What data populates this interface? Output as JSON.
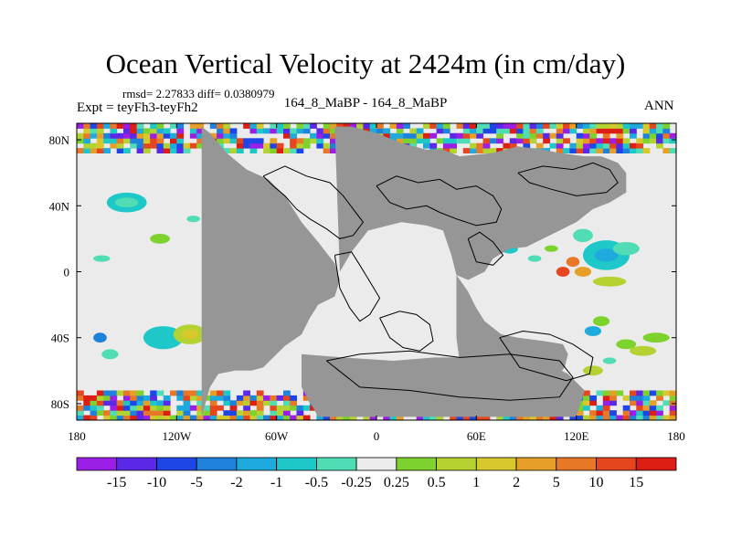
{
  "header": {
    "title": "Ocean Vertical Velocity at 2424m (in cm/day)",
    "stats": "rmsd= 2.27833 diff= 0.0380979",
    "experiment": "Expt = teyFh3-teyFh2",
    "case": "164_8_MaBP - 164_8_MaBP",
    "season": "ANN"
  },
  "colors": {
    "land": "#969696",
    "neutral": "#ebebeb",
    "coast": "#000000"
  },
  "chart_data": {
    "type": "heatmap",
    "title": "Ocean Vertical Velocity at 2424m (in cm/day)",
    "xlim": [
      -180,
      180
    ],
    "ylim": [
      -90,
      90
    ],
    "x_ticks": [
      {
        "value": -180,
        "label": "180"
      },
      {
        "value": -120,
        "label": "120W"
      },
      {
        "value": -60,
        "label": "60W"
      },
      {
        "value": 0,
        "label": "0"
      },
      {
        "value": 60,
        "label": "60E"
      },
      {
        "value": 120,
        "label": "120E"
      },
      {
        "value": 180,
        "label": "180"
      }
    ],
    "y_ticks": [
      {
        "value": 80,
        "label": "80N"
      },
      {
        "value": 40,
        "label": "40N"
      },
      {
        "value": 0,
        "label": "0"
      },
      {
        "value": -40,
        "label": "40S"
      },
      {
        "value": -80,
        "label": "80S"
      }
    ],
    "colorbar": {
      "labels": [
        "-15",
        "-10",
        "-5",
        "-2",
        "-1",
        "-0.5",
        "-0.25",
        "0.25",
        "0.5",
        "1",
        "2",
        "5",
        "10",
        "15"
      ],
      "colors": [
        "#9b1ee6",
        "#5a28e6",
        "#1e46e6",
        "#1e82dc",
        "#1eaadc",
        "#1ec8c8",
        "#50dcb4",
        "#ebebeb",
        "#7dd22d",
        "#b4d232",
        "#d7c82d",
        "#e6a028",
        "#e67828",
        "#e6461e",
        "#dc1e14"
      ]
    },
    "land": [
      {
        "lon": [
          -105,
          -100,
          -90,
          -78,
          -65,
          -55,
          -45,
          -35,
          -25,
          -22,
          -25,
          -35,
          -40,
          -45,
          -55,
          -62,
          -68,
          -75,
          -85,
          -95,
          -100,
          -105
        ],
        "lat": [
          88,
          84,
          72,
          62,
          56,
          46,
          30,
          18,
          5,
          -5,
          -15,
          -20,
          -28,
          -38,
          -45,
          -52,
          -58,
          -60,
          -60,
          -62,
          -70,
          -88
        ]
      },
      {
        "lon": [
          -25,
          -15,
          0,
          15,
          30,
          40,
          50,
          70,
          85,
          100,
          110,
          125,
          135,
          145,
          150,
          150,
          140,
          130,
          120,
          110,
          100,
          90,
          80,
          70,
          65,
          55,
          48,
          45,
          40,
          30,
          15,
          -5,
          -15,
          -22,
          -25
        ],
        "lat": [
          88,
          88,
          84,
          78,
          74,
          74,
          70,
          72,
          76,
          74,
          72,
          70,
          70,
          66,
          60,
          48,
          42,
          38,
          30,
          25,
          20,
          15,
          14,
          8,
          0,
          -5,
          -2,
          10,
          25,
          28,
          30,
          25,
          12,
          0,
          88
        ]
      },
      {
        "lon": [
          48,
          55,
          60,
          65,
          75,
          85,
          100,
          112,
          115,
          113,
          108,
          100,
          90,
          80,
          70,
          60,
          52,
          48
        ],
        "lat": [
          -2,
          -12,
          -22,
          -30,
          -38,
          -40,
          -42,
          -44,
          -50,
          -58,
          -64,
          -72,
          -78,
          -80,
          -82,
          -80,
          -70,
          -40
        ]
      },
      {
        "lon": [
          -45,
          -20,
          10,
          35,
          60,
          80,
          100,
          115,
          125,
          120,
          95,
          60,
          30,
          10,
          -15,
          -35,
          -45
        ],
        "lat": [
          -50,
          -52,
          -54,
          -52,
          -52,
          -50,
          -54,
          -62,
          -72,
          -88,
          -88,
          -88,
          -88,
          -88,
          -88,
          -88,
          -70
        ]
      }
    ],
    "coastlines": [
      {
        "lon": [
          -68,
          -55,
          -42,
          -28,
          -20,
          -14,
          -8,
          -14,
          -22,
          -30,
          -40,
          -48,
          -55,
          -62,
          -68
        ],
        "lat": [
          58,
          64,
          58,
          54,
          46,
          38,
          30,
          22,
          20,
          26,
          32,
          38,
          46,
          52,
          58
        ]
      },
      {
        "lon": [
          0,
          12,
          25,
          38,
          48,
          60,
          70,
          75,
          72,
          60,
          48,
          38,
          30,
          18,
          8,
          0
        ],
        "lat": [
          52,
          58,
          54,
          56,
          50,
          52,
          46,
          38,
          30,
          28,
          32,
          36,
          40,
          38,
          42,
          52
        ]
      },
      {
        "lon": [
          -25,
          -15,
          -10,
          -4,
          2,
          -4,
          -10,
          -16,
          -22,
          -25
        ],
        "lat": [
          10,
          12,
          4,
          -6,
          -16,
          -26,
          -30,
          -22,
          -10,
          10
        ]
      },
      {
        "lon": [
          2,
          14,
          24,
          32,
          34,
          26,
          16,
          8,
          2
        ],
        "lat": [
          -28,
          -24,
          -26,
          -32,
          -42,
          -48,
          -46,
          -40,
          -28
        ]
      },
      {
        "lon": [
          74,
          88,
          104,
          118,
          130,
          128,
          114,
          100,
          86,
          74
        ],
        "lat": [
          -40,
          -36,
          -38,
          -44,
          -52,
          -62,
          -66,
          -62,
          -58,
          -40
        ]
      },
      {
        "lon": [
          -30,
          -10,
          20,
          50,
          80,
          110,
          118,
          110,
          80,
          50,
          20,
          -10,
          -30
        ],
        "lat": [
          -54,
          -50,
          -48,
          -52,
          -50,
          -54,
          -64,
          -76,
          -78,
          -76,
          -72,
          -70,
          -54
        ]
      },
      {
        "lon": [
          85,
          100,
          118,
          130,
          140,
          145,
          138,
          120,
          105,
          92,
          85
        ],
        "lat": [
          60,
          64,
          62,
          66,
          62,
          54,
          48,
          46,
          50,
          54,
          60
        ]
      },
      {
        "lon": [
          55,
          62,
          70,
          76,
          70,
          60,
          55
        ],
        "lat": [
          20,
          24,
          18,
          10,
          4,
          6,
          20
        ]
      }
    ],
    "anomalies": [
      {
        "lon": -150,
        "lat": 42,
        "rx": 12,
        "ry": 6,
        "level": 5
      },
      {
        "lon": -150,
        "lat": 42,
        "rx": 7,
        "ry": 3,
        "level": 6
      },
      {
        "lon": -130,
        "lat": 20,
        "rx": 6,
        "ry": 3,
        "level": 8
      },
      {
        "lon": -165,
        "lat": 8,
        "rx": 5,
        "ry": 2,
        "level": 6
      },
      {
        "lon": -110,
        "lat": 32,
        "rx": 4,
        "ry": 2,
        "level": 6
      },
      {
        "lon": -128,
        "lat": -40,
        "rx": 12,
        "ry": 7,
        "level": 5
      },
      {
        "lon": -112,
        "lat": -38,
        "rx": 10,
        "ry": 6,
        "level": 9
      },
      {
        "lon": -112,
        "lat": -38,
        "rx": 5,
        "ry": 3,
        "level": 10
      },
      {
        "lon": -160,
        "lat": -50,
        "rx": 5,
        "ry": 3,
        "level": 6
      },
      {
        "lon": -166,
        "lat": -40,
        "rx": 4,
        "ry": 3,
        "level": 3
      },
      {
        "lon": 60,
        "lat": 20,
        "rx": 8,
        "ry": 4,
        "level": 8
      },
      {
        "lon": 80,
        "lat": 14,
        "rx": 5,
        "ry": 3,
        "level": 5
      },
      {
        "lon": 105,
        "lat": 14,
        "rx": 4,
        "ry": 2,
        "level": 8
      },
      {
        "lon": 95,
        "lat": 8,
        "rx": 4,
        "ry": 2,
        "level": 6
      },
      {
        "lon": 138,
        "lat": 10,
        "rx": 14,
        "ry": 9,
        "level": 5
      },
      {
        "lon": 138,
        "lat": 10,
        "rx": 7,
        "ry": 4,
        "level": 4
      },
      {
        "lon": 150,
        "lat": 14,
        "rx": 8,
        "ry": 4,
        "level": 6
      },
      {
        "lon": 124,
        "lat": 22,
        "rx": 6,
        "ry": 4,
        "level": 6
      },
      {
        "lon": 118,
        "lat": 6,
        "rx": 4,
        "ry": 3,
        "level": 12
      },
      {
        "lon": 112,
        "lat": 0,
        "rx": 4,
        "ry": 3,
        "level": 13
      },
      {
        "lon": 124,
        "lat": 0,
        "rx": 5,
        "ry": 3,
        "level": 11
      },
      {
        "lon": 140,
        "lat": -6,
        "rx": 10,
        "ry": 3,
        "level": 9
      },
      {
        "lon": 168,
        "lat": -40,
        "rx": 8,
        "ry": 3,
        "level": 8
      },
      {
        "lon": 160,
        "lat": -48,
        "rx": 8,
        "ry": 3,
        "level": 9
      },
      {
        "lon": 150,
        "lat": -44,
        "rx": 6,
        "ry": 3,
        "level": 8
      },
      {
        "lon": 135,
        "lat": -30,
        "rx": 5,
        "ry": 3,
        "level": 8
      },
      {
        "lon": 130,
        "lat": -36,
        "rx": 5,
        "ry": 3,
        "level": 4
      },
      {
        "lon": 130,
        "lat": -60,
        "rx": 6,
        "ry": 3,
        "level": 9
      },
      {
        "lon": 140,
        "lat": -54,
        "rx": 4,
        "ry": 2,
        "level": 6
      },
      {
        "lon": -35,
        "lat": -78,
        "rx": 6,
        "ry": 3,
        "level": 6
      },
      {
        "lon": 0,
        "lat": -84,
        "rx": 5,
        "ry": 2,
        "level": 5
      }
    ]
  }
}
